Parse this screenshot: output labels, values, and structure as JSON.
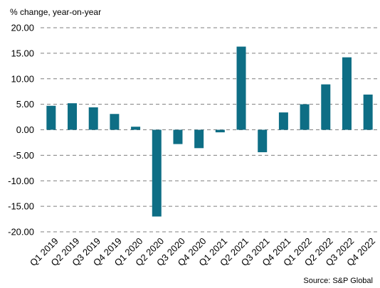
{
  "chart_data": {
    "type": "bar",
    "ylabel": "% change, year-on-year",
    "source": "Source: S&P Global",
    "categories": [
      "Q1 2019",
      "Q2 2019",
      "Q3 2019",
      "Q4 2019",
      "Q1 2020",
      "Q2 2020",
      "Q3 2020",
      "Q4 2020",
      "Q1 2021",
      "Q2 2021",
      "Q3 2021",
      "Q4 2021",
      "Q1 2022",
      "Q2 2022",
      "Q3 2022",
      "Q4 2022"
    ],
    "values": [
      4.7,
      5.2,
      4.4,
      3.1,
      0.6,
      -17.0,
      -2.8,
      -3.6,
      -0.5,
      16.3,
      -4.4,
      3.4,
      5.0,
      8.9,
      14.2,
      6.9
    ],
    "ylim": [
      -20,
      20
    ],
    "yticks": [
      20,
      15,
      10,
      5,
      0,
      -5,
      -10,
      -15,
      -20
    ],
    "ytick_labels": [
      "20.00",
      "15.00",
      "10.00",
      "5.00",
      "0.00",
      "-5.00",
      "-10.00",
      "-15.00",
      "-20.00"
    ],
    "grid": true,
    "bar_color": "#0e6e85",
    "grid_color": "#7f7f7f"
  }
}
